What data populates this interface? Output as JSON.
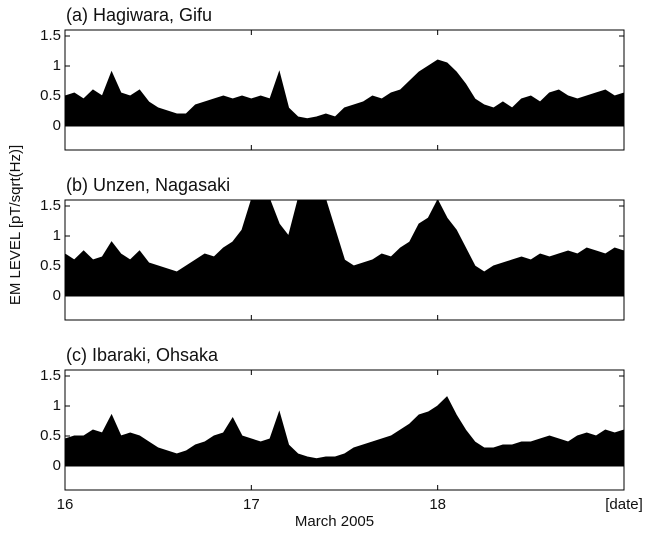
{
  "chart_data": [
    {
      "type": "line",
      "title": "(a) Hagiwara, Gifu",
      "x": [
        16,
        16.05,
        16.1,
        16.15,
        16.2,
        16.25,
        16.3,
        16.35,
        16.4,
        16.45,
        16.5,
        16.55,
        16.6,
        16.65,
        16.7,
        16.75,
        16.8,
        16.85,
        16.9,
        16.95,
        17,
        17.05,
        17.1,
        17.15,
        17.2,
        17.25,
        17.3,
        17.35,
        17.4,
        17.45,
        17.5,
        17.55,
        17.6,
        17.65,
        17.7,
        17.75,
        17.8,
        17.85,
        17.9,
        17.95,
        18,
        18.05,
        18.1,
        18.15,
        18.2,
        18.25,
        18.3,
        18.35,
        18.4,
        18.45,
        18.5,
        18.55,
        18.6,
        18.65,
        18.7,
        18.75,
        18.8,
        18.85,
        18.9,
        18.95,
        19
      ],
      "series": [
        {
          "color": "#000000",
          "values": [
            0.5,
            0.55,
            0.45,
            0.6,
            0.5,
            0.9,
            0.55,
            0.5,
            0.6,
            0.4,
            0.3,
            0.25,
            0.2,
            0.2,
            0.35,
            0.4,
            0.45,
            0.5,
            0.45,
            0.5,
            0.45,
            0.5,
            0.45,
            0.9,
            0.3,
            0.15,
            0.12,
            0.15,
            0.2,
            0.15,
            0.3,
            0.35,
            0.4,
            0.5,
            0.45,
            0.55,
            0.6,
            0.75,
            0.9,
            1.0,
            1.1,
            1.05,
            0.9,
            0.7,
            0.45,
            0.35,
            0.3,
            0.4,
            0.3,
            0.45,
            0.5,
            0.4,
            0.55,
            0.6,
            0.5,
            0.45,
            0.5,
            0.55,
            0.6,
            0.5,
            0.55
          ]
        }
      ],
      "xlim": [
        16,
        19
      ],
      "ylim": [
        -0.4,
        1.6
      ],
      "yticks": [
        0,
        0.5,
        1,
        1.5
      ]
    },
    {
      "type": "line",
      "title": "(b) Unzen, Nagasaki",
      "y_label": "EM LEVEL  [pT/sqrt(Hz)]",
      "x": [
        16,
        16.05,
        16.1,
        16.15,
        16.2,
        16.25,
        16.3,
        16.35,
        16.4,
        16.45,
        16.5,
        16.55,
        16.6,
        16.65,
        16.7,
        16.75,
        16.8,
        16.85,
        16.9,
        16.95,
        17,
        17.05,
        17.1,
        17.15,
        17.2,
        17.25,
        17.3,
        17.35,
        17.4,
        17.45,
        17.5,
        17.55,
        17.6,
        17.65,
        17.7,
        17.75,
        17.8,
        17.85,
        17.9,
        17.95,
        18,
        18.05,
        18.1,
        18.15,
        18.2,
        18.25,
        18.3,
        18.35,
        18.4,
        18.45,
        18.5,
        18.55,
        18.6,
        18.65,
        18.7,
        18.75,
        18.8,
        18.85,
        18.9,
        18.95,
        19
      ],
      "series": [
        {
          "color": "#000000",
          "values": [
            0.7,
            0.6,
            0.75,
            0.6,
            0.65,
            0.9,
            0.7,
            0.6,
            0.75,
            0.55,
            0.5,
            0.45,
            0.4,
            0.5,
            0.6,
            0.7,
            0.65,
            0.8,
            0.9,
            1.1,
            1.6,
            1.6,
            1.6,
            1.2,
            1.0,
            1.6,
            1.6,
            1.6,
            1.6,
            1.1,
            0.6,
            0.5,
            0.55,
            0.6,
            0.7,
            0.65,
            0.8,
            0.9,
            1.2,
            1.3,
            1.6,
            1.3,
            1.1,
            0.8,
            0.5,
            0.4,
            0.5,
            0.55,
            0.6,
            0.65,
            0.6,
            0.7,
            0.65,
            0.7,
            0.75,
            0.7,
            0.8,
            0.75,
            0.7,
            0.8,
            0.75
          ]
        }
      ],
      "xlim": [
        16,
        19
      ],
      "ylim": [
        -0.4,
        1.6
      ],
      "yticks": [
        0,
        0.5,
        1,
        1.5
      ]
    },
    {
      "type": "line",
      "title": "(c) Ibaraki, Ohsaka",
      "x_label": "March 2005",
      "x": [
        16,
        16.05,
        16.1,
        16.15,
        16.2,
        16.25,
        16.3,
        16.35,
        16.4,
        16.45,
        16.5,
        16.55,
        16.6,
        16.65,
        16.7,
        16.75,
        16.8,
        16.85,
        16.9,
        16.95,
        17,
        17.05,
        17.1,
        17.15,
        17.2,
        17.25,
        17.3,
        17.35,
        17.4,
        17.45,
        17.5,
        17.55,
        17.6,
        17.65,
        17.7,
        17.75,
        17.8,
        17.85,
        17.9,
        17.95,
        18,
        18.05,
        18.1,
        18.15,
        18.2,
        18.25,
        18.3,
        18.35,
        18.4,
        18.45,
        18.5,
        18.55,
        18.6,
        18.65,
        18.7,
        18.75,
        18.8,
        18.85,
        18.9,
        18.95,
        19
      ],
      "series": [
        {
          "color": "#000000",
          "values": [
            0.45,
            0.5,
            0.5,
            0.6,
            0.55,
            0.85,
            0.5,
            0.55,
            0.5,
            0.4,
            0.3,
            0.25,
            0.2,
            0.25,
            0.35,
            0.4,
            0.5,
            0.55,
            0.8,
            0.5,
            0.45,
            0.4,
            0.45,
            0.9,
            0.35,
            0.2,
            0.15,
            0.12,
            0.15,
            0.15,
            0.2,
            0.3,
            0.35,
            0.4,
            0.45,
            0.5,
            0.6,
            0.7,
            0.85,
            0.9,
            1.0,
            1.15,
            0.85,
            0.6,
            0.4,
            0.3,
            0.3,
            0.35,
            0.35,
            0.4,
            0.4,
            0.45,
            0.5,
            0.45,
            0.4,
            0.5,
            0.55,
            0.5,
            0.6,
            0.55,
            0.6
          ]
        }
      ],
      "xlim": [
        16,
        19
      ],
      "ylim": [
        -0.4,
        1.6
      ],
      "yticks": [
        0,
        0.5,
        1,
        1.5
      ],
      "xticks": [
        16,
        17,
        18,
        {
          "value": 19,
          "label": "[date]"
        }
      ]
    }
  ]
}
